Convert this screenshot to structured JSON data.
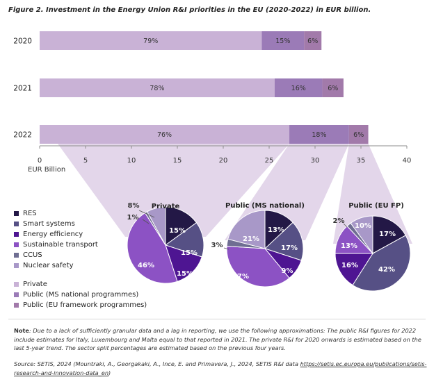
{
  "title": "Figure 2. Investment in the Energy Union R&I priorities in the EU (2020-2022) in EUR billion.",
  "colors": {
    "private": "#c9b2d6",
    "public_ms": "#9b7bb7",
    "public_eu": "#a27aaa",
    "res": "#231846",
    "smart": "#565085",
    "efficiency": "#4e1592",
    "transport": "#8c52c4",
    "ccus": "#6f6e92",
    "nuclear": "#a898c8",
    "funnel": "#d9c8e3"
  },
  "chart_data": [
    {
      "type": "bar",
      "orientation": "horizontal",
      "stacked": true,
      "categories": [
        "2020",
        "2021",
        "2022"
      ],
      "xlabel": "EUR Billion",
      "xlim": [
        0,
        40
      ],
      "xticks": [
        0,
        5,
        10,
        15,
        20,
        25,
        30,
        35,
        40
      ],
      "tick_labels": [
        "0",
        "5",
        "10",
        "15",
        "20",
        "25",
        "30",
        "35",
        "40"
      ],
      "grid": false,
      "series": [
        {
          "name": "Private",
          "color": "#c9b2d6",
          "values": [
            24.2,
            25.6,
            27.2
          ],
          "labels": [
            "79%",
            "78%",
            "76%"
          ]
        },
        {
          "name": "Public (MS national programmes)",
          "color": "#9b7bb7",
          "values": [
            4.6,
            5.2,
            6.5
          ],
          "labels": [
            "15%",
            "16%",
            "18%"
          ]
        },
        {
          "name": "Public (EU framework programmes)",
          "color": "#a27aaa",
          "values": [
            1.9,
            2.3,
            2.1
          ],
          "labels": [
            "6%",
            "6%",
            "6%"
          ]
        }
      ]
    },
    {
      "type": "pie",
      "title": "Private",
      "slices": [
        {
          "sector": "RES",
          "value": 15,
          "label": "15%"
        },
        {
          "sector": "Smart systems",
          "value": 15,
          "label": "15%"
        },
        {
          "sector": "Energy efficiency",
          "value": 15,
          "label": "15%"
        },
        {
          "sector": "Sustainable transport",
          "value": 46,
          "label": "46%"
        },
        {
          "sector": "CCUS",
          "value": 1,
          "label": "1%"
        },
        {
          "sector": "Nuclear safety",
          "value": 8,
          "label": "8%"
        }
      ]
    },
    {
      "type": "pie",
      "title": "Public (MS national)",
      "slices": [
        {
          "sector": "RES",
          "value": 13,
          "label": "13%"
        },
        {
          "sector": "Smart systems",
          "value": 17,
          "label": "17%"
        },
        {
          "sector": "Energy efficiency",
          "value": 9,
          "label": "9%"
        },
        {
          "sector": "Sustainable transport",
          "value": 37,
          "label": "37%"
        },
        {
          "sector": "CCUS",
          "value": 3,
          "label": "3%"
        },
        {
          "sector": "Nuclear safety",
          "value": 21,
          "label": "21%"
        }
      ]
    },
    {
      "type": "pie",
      "title": "Public (EU FP)",
      "slices": [
        {
          "sector": "RES",
          "value": 17,
          "label": "17%"
        },
        {
          "sector": "Smart systems",
          "value": 42,
          "label": "42%"
        },
        {
          "sector": "Energy efficiency",
          "value": 16,
          "label": "16%"
        },
        {
          "sector": "Sustainable transport",
          "value": 13,
          "label": "13%"
        },
        {
          "sector": "CCUS",
          "value": 2,
          "label": "2%"
        },
        {
          "sector": "Nuclear safety",
          "value": 10,
          "label": "10%"
        }
      ]
    }
  ],
  "legend_sectors": [
    {
      "label": "RES",
      "color": "#231846"
    },
    {
      "label": "Smart systems",
      "color": "#565085"
    },
    {
      "label": "Energy efficiency",
      "color": "#4e1592"
    },
    {
      "label": "Sustainable transport",
      "color": "#8c52c4"
    },
    {
      "label": "CCUS",
      "color": "#6f6e92"
    },
    {
      "label": "Nuclear safety",
      "color": "#a898c8"
    }
  ],
  "legend_funding": [
    {
      "label": "Private",
      "color": "#c9b2d6"
    },
    {
      "label": "Public (MS national programmes)",
      "color": "#9b7bb7"
    },
    {
      "label": "Public (EU framework programmes)",
      "color": "#a27aaa"
    }
  ],
  "note": {
    "label": "Note",
    "text": ": Due to a lack of sufficiently granular data and a lag in reporting, we use the following approximations: The public R&I figures for 2022 include estimates for Italy, Luxembourg and Malta equal to that reported in 2021. The private R&I for 2020 onwards is estimated based on the last 5-year trend. The sector split percentages are estimated based on the previous four years."
  },
  "source": {
    "text": "Source: SETIS, 2024 (Mountraki, A., Georgakaki, A., Ince, E. and Primavera, J., 2024, SETIS R&I data ",
    "link": "https://setis.ec.europa.eu/publications/setis-research-and-innovation-data_en",
    "suffix": ")"
  }
}
